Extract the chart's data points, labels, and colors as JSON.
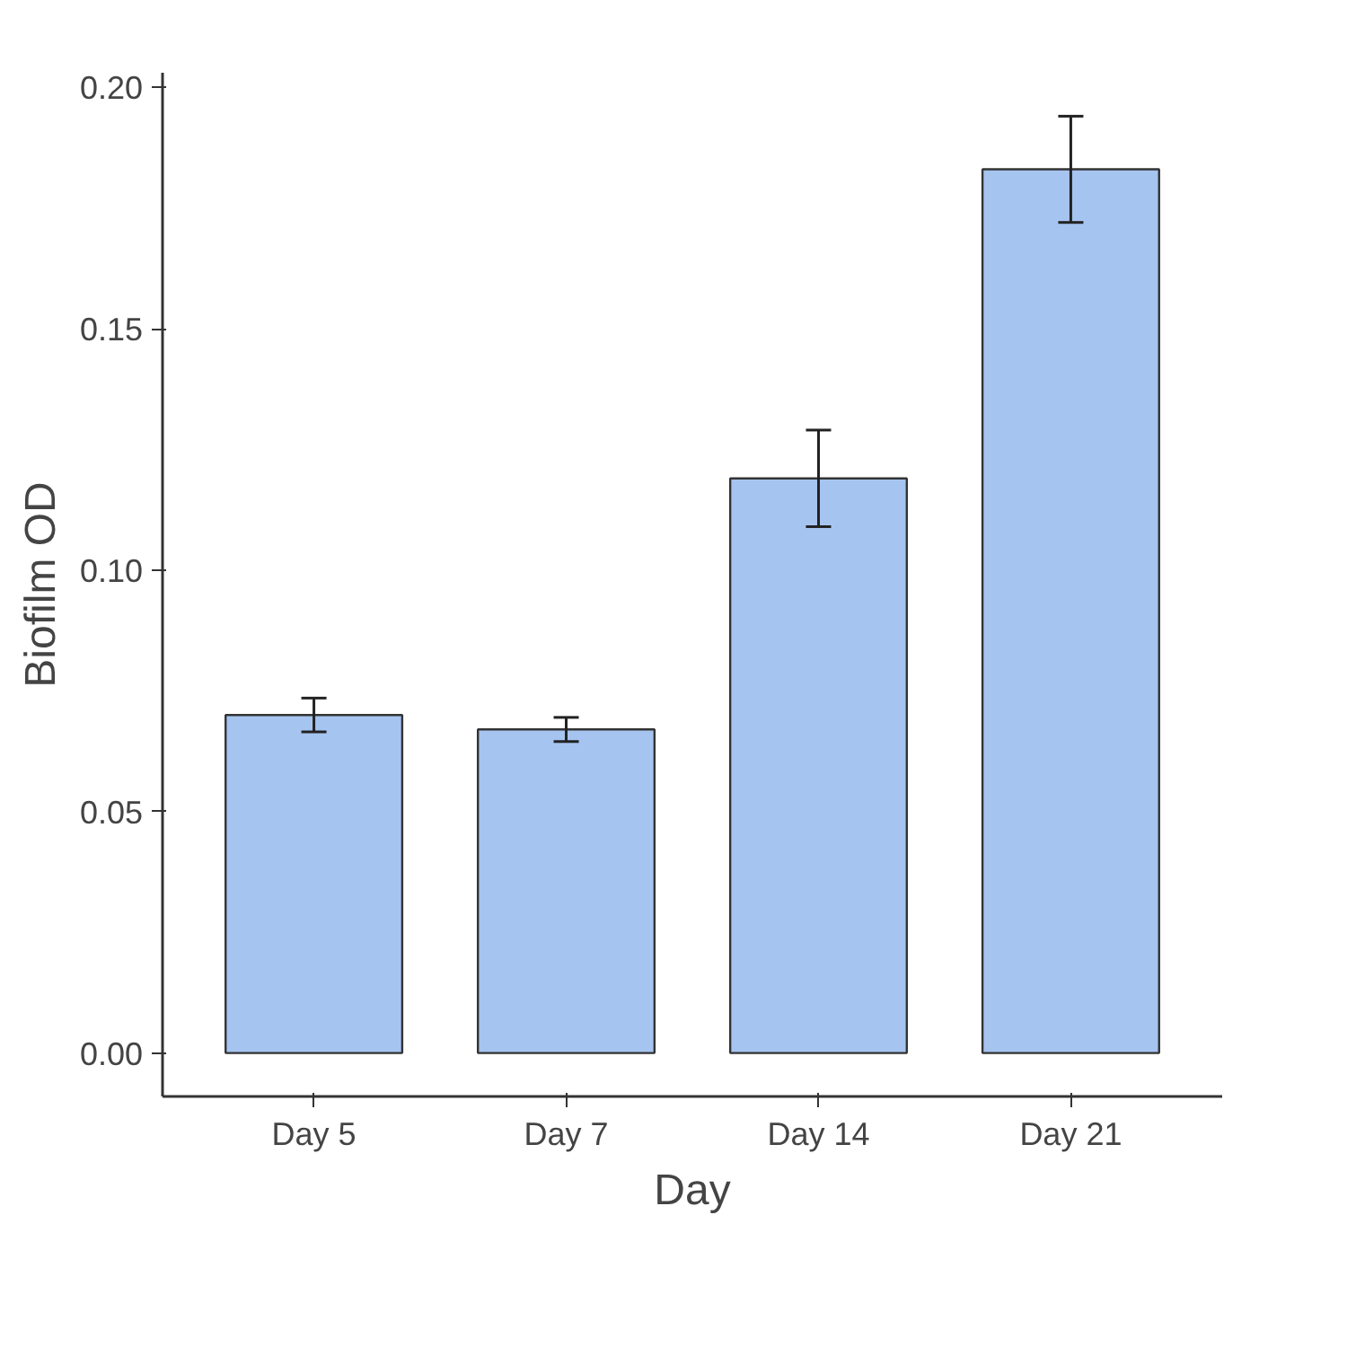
{
  "chart_data": {
    "type": "bar",
    "xlabel": "Day",
    "ylabel": "Biofilm OD",
    "categories": [
      "Day 5",
      "Day 7",
      "Day 14",
      "Day 21"
    ],
    "values": [
      0.07,
      0.067,
      0.119,
      0.183
    ],
    "errors": [
      0.0035,
      0.0025,
      0.01,
      0.011
    ],
    "color": "#a6c4f0",
    "ylim": [
      -0.009,
      0.203
    ],
    "yticks": [
      {
        "value": 0,
        "label": "0.00"
      },
      {
        "value": 0.05,
        "label": "0.05"
      },
      {
        "value": 0.1,
        "label": "0.10"
      },
      {
        "value": 0.15,
        "label": "0.15"
      },
      {
        "value": 0.2,
        "label": "0.20"
      }
    ],
    "grid": false
  }
}
